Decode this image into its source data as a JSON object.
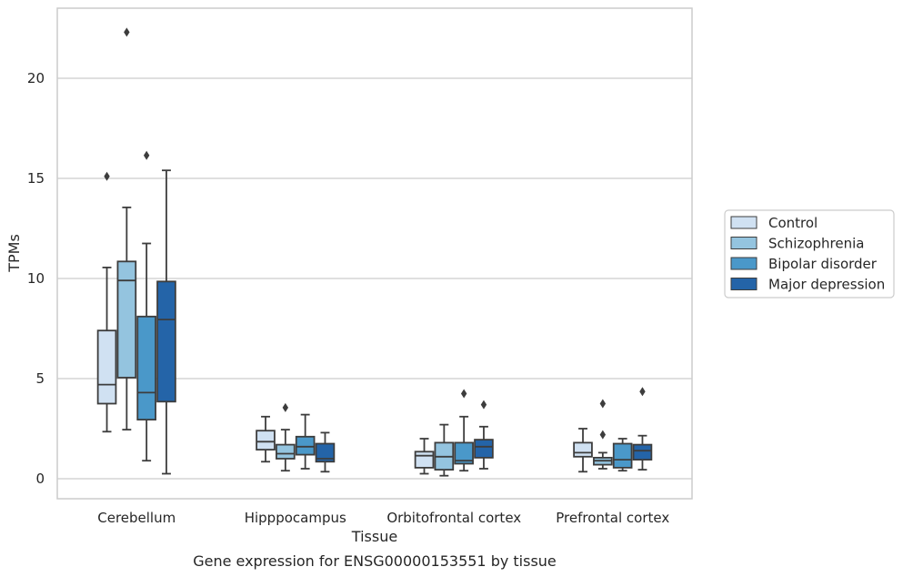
{
  "chart_data": {
    "type": "box",
    "title": "",
    "caption": "Gene expression for ENSG00000153551 by tissue",
    "xlabel": "Tissue",
    "ylabel": "TPMs",
    "ylim": [
      -1,
      23.5
    ],
    "yticks": [
      0,
      5,
      10,
      15,
      20
    ],
    "grid": "horizontal",
    "legend_placement": "right",
    "categories": [
      "Cerebellum",
      "Hipppocampus",
      "Orbitofrontal cortex",
      "Prefrontal cortex"
    ],
    "series": [
      {
        "name": "Control",
        "color": "#d0e1f2",
        "boxes": [
          {
            "whislo": 2.35,
            "q1": 3.75,
            "med": 4.7,
            "q3": 7.4,
            "whishi": 10.55,
            "fliers": [
              15.1
            ]
          },
          {
            "whislo": 0.85,
            "q1": 1.45,
            "med": 1.85,
            "q3": 2.4,
            "whishi": 3.1,
            "fliers": []
          },
          {
            "whislo": 0.25,
            "q1": 0.55,
            "med": 1.15,
            "q3": 1.35,
            "whishi": 2.0,
            "fliers": []
          },
          {
            "whislo": 0.35,
            "q1": 1.1,
            "med": 1.3,
            "q3": 1.8,
            "whishi": 2.5,
            "fliers": []
          }
        ]
      },
      {
        "name": "Schizophrenia",
        "color": "#94c4df",
        "boxes": [
          {
            "whislo": 2.45,
            "q1": 5.05,
            "med": 9.9,
            "q3": 10.85,
            "whishi": 13.55,
            "fliers": [
              22.3
            ]
          },
          {
            "whislo": 0.4,
            "q1": 1.0,
            "med": 1.25,
            "q3": 1.7,
            "whishi": 2.45,
            "fliers": [
              3.55
            ]
          },
          {
            "whislo": 0.15,
            "q1": 0.45,
            "med": 1.1,
            "q3": 1.8,
            "whishi": 2.7,
            "fliers": []
          },
          {
            "whislo": 0.5,
            "q1": 0.7,
            "med": 0.9,
            "q3": 1.05,
            "whishi": 1.3,
            "fliers": [
              3.75,
              2.2
            ]
          }
        ]
      },
      {
        "name": "Bipolar disorder",
        "color": "#4a98c9",
        "boxes": [
          {
            "whislo": 0.9,
            "q1": 2.95,
            "med": 4.3,
            "q3": 8.1,
            "whishi": 11.75,
            "fliers": [
              16.15
            ]
          },
          {
            "whislo": 0.5,
            "q1": 1.2,
            "med": 1.6,
            "q3": 2.1,
            "whishi": 3.2,
            "fliers": []
          },
          {
            "whislo": 0.4,
            "q1": 0.75,
            "med": 0.9,
            "q3": 1.8,
            "whishi": 3.1,
            "fliers": [
              4.25
            ]
          },
          {
            "whislo": 0.4,
            "q1": 0.55,
            "med": 0.95,
            "q3": 1.75,
            "whishi": 2.0,
            "fliers": []
          }
        ]
      },
      {
        "name": "Major depression",
        "color": "#2464a8",
        "boxes": [
          {
            "whislo": 0.25,
            "q1": 3.85,
            "med": 7.95,
            "q3": 9.85,
            "whishi": 15.4,
            "fliers": []
          },
          {
            "whislo": 0.35,
            "q1": 0.85,
            "med": 1.0,
            "q3": 1.75,
            "whishi": 2.3,
            "fliers": []
          },
          {
            "whislo": 0.5,
            "q1": 1.05,
            "med": 1.6,
            "q3": 1.95,
            "whishi": 2.6,
            "fliers": [
              3.7
            ]
          },
          {
            "whislo": 0.45,
            "q1": 0.95,
            "med": 1.4,
            "q3": 1.7,
            "whishi": 2.15,
            "fliers": [
              4.35
            ]
          }
        ]
      }
    ]
  }
}
